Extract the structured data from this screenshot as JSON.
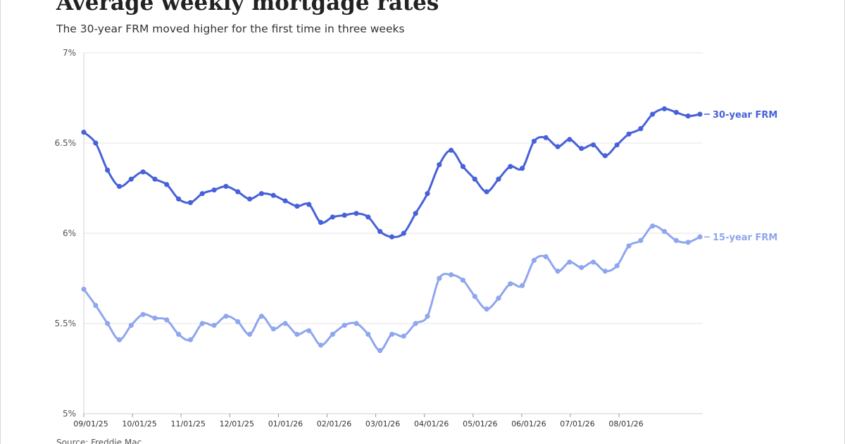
{
  "header": {
    "title": "Average weekly mortgage rates",
    "subtitle": "The 30-year FRM moved higher for the first time in three weeks"
  },
  "footer": {
    "source": "Source: Freddie Mac"
  },
  "chart_data": {
    "type": "line",
    "title": "Average weekly mortgage rates",
    "subtitle": "The 30-year FRM moved higher for the first time in three weeks",
    "xlabel": "",
    "ylabel": "",
    "ylim": [
      5,
      7
    ],
    "y_ticks": [
      5,
      5.5,
      6,
      6.5,
      7
    ],
    "y_tick_labels": [
      "5%",
      "5.5%",
      "6%",
      "6.5%",
      "7%"
    ],
    "x_tick_labels": [
      "09/01/25",
      "10/01/25",
      "11/01/25",
      "12/01/25",
      "01/01/26",
      "02/01/26",
      "03/01/26",
      "04/01/26",
      "05/01/26",
      "06/01/26",
      "07/01/26",
      "08/01/26"
    ],
    "grid": "horizontal",
    "legend": "direct labels at right end of each line",
    "series": [
      {
        "name": "30-year FRM",
        "color": "#4761d9",
        "values": [
          6.56,
          6.5,
          6.35,
          6.26,
          6.3,
          6.34,
          6.3,
          6.27,
          6.19,
          6.17,
          6.22,
          6.24,
          6.26,
          6.23,
          6.19,
          6.22,
          6.21,
          6.18,
          6.15,
          6.16,
          6.06,
          6.09,
          6.1,
          6.11,
          6.09,
          6.01,
          5.98,
          6.0,
          6.11,
          6.22,
          6.38,
          6.46,
          6.37,
          6.3,
          6.23,
          6.3,
          6.37,
          6.36,
          6.51,
          6.53,
          6.48,
          6.52,
          6.47,
          6.49,
          6.43,
          6.49,
          6.55,
          6.58,
          6.66,
          6.69,
          6.67,
          6.65,
          6.66
        ]
      },
      {
        "name": "15-year FRM",
        "color": "#8fa6ee",
        "values": [
          5.69,
          5.6,
          5.5,
          5.41,
          5.49,
          5.55,
          5.53,
          5.52,
          5.44,
          5.41,
          5.5,
          5.49,
          5.54,
          5.51,
          5.44,
          5.54,
          5.47,
          5.5,
          5.44,
          5.46,
          5.38,
          5.44,
          5.49,
          5.5,
          5.44,
          5.35,
          5.44,
          5.43,
          5.5,
          5.54,
          5.75,
          5.77,
          5.74,
          5.65,
          5.58,
          5.64,
          5.72,
          5.71,
          5.85,
          5.87,
          5.79,
          5.84,
          5.81,
          5.84,
          5.79,
          5.82,
          5.93,
          5.96,
          6.04,
          6.01,
          5.96,
          5.95,
          5.98
        ]
      }
    ]
  },
  "colors": {
    "series_30": "#4761d9",
    "series_15": "#8fa6ee",
    "grid": "#e6e6e6",
    "axis": "#d0d0d0"
  }
}
